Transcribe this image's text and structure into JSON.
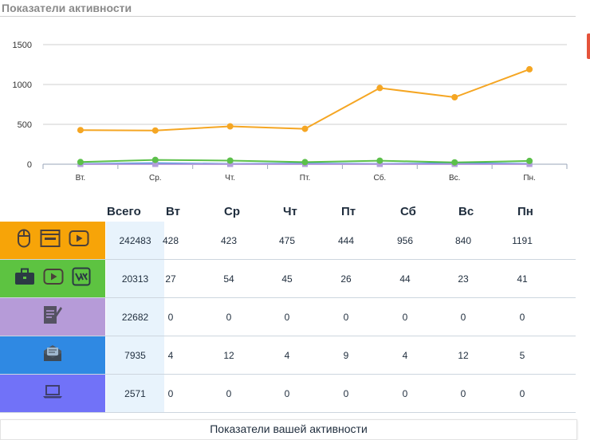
{
  "header": {
    "title": "Показатели активности"
  },
  "chart_data": {
    "type": "line",
    "categories": [
      "Вт.",
      "Ср.",
      "Чт.",
      "Пт.",
      "Сб.",
      "Вс.",
      "Пн."
    ],
    "yticks": [
      0,
      500,
      1000,
      1500
    ],
    "ylim": [
      0,
      1500
    ],
    "grid": true,
    "series": [
      {
        "values": [
          428,
          423,
          475,
          444,
          956,
          840,
          1191
        ],
        "color": "#f5a623"
      },
      {
        "values": [
          27,
          54,
          45,
          26,
          44,
          23,
          41
        ],
        "color": "#5cc04a"
      },
      {
        "values": [
          0,
          0,
          0,
          0,
          0,
          0,
          0
        ],
        "color": "#b39ddb"
      },
      {
        "values": [
          4,
          12,
          4,
          9,
          4,
          12,
          5
        ],
        "color": "#3f8fe0"
      },
      {
        "values": [
          0,
          0,
          0,
          0,
          0,
          0,
          0
        ],
        "color": "#6b78f5"
      }
    ]
  },
  "table": {
    "headers": [
      "Всего",
      "Вт",
      "Ср",
      "Чт",
      "Пт",
      "Сб",
      "Вс",
      "Пн"
    ],
    "rows": [
      {
        "color": "#f7a408",
        "icons": [
          "mouse-icon",
          "browser-window-icon",
          "video-play-icon"
        ],
        "total": "242483",
        "values": [
          "428",
          "423",
          "475",
          "444",
          "956",
          "840",
          "1191"
        ]
      },
      {
        "color": "#5dc341",
        "icons": [
          "briefcase-icon",
          "video-play-icon",
          "vk-icon"
        ],
        "total": "20313",
        "values": [
          "27",
          "54",
          "45",
          "26",
          "44",
          "23",
          "41"
        ]
      },
      {
        "color": "#b69bd8",
        "icons": [
          "document-pen-icon"
        ],
        "total": "22682",
        "values": [
          "0",
          "0",
          "0",
          "0",
          "0",
          "0",
          "0"
        ]
      },
      {
        "color": "#2f89e3",
        "icons": [
          "envelope-icon"
        ],
        "total": "7935",
        "values": [
          "4",
          "12",
          "4",
          "9",
          "4",
          "12",
          "5"
        ]
      },
      {
        "color": "#7172f8",
        "icons": [
          "laptop-icon"
        ],
        "total": "2571",
        "values": [
          "0",
          "0",
          "0",
          "0",
          "0",
          "0",
          "0"
        ]
      }
    ]
  },
  "footer": {
    "label": "Показатели вашей активности"
  }
}
